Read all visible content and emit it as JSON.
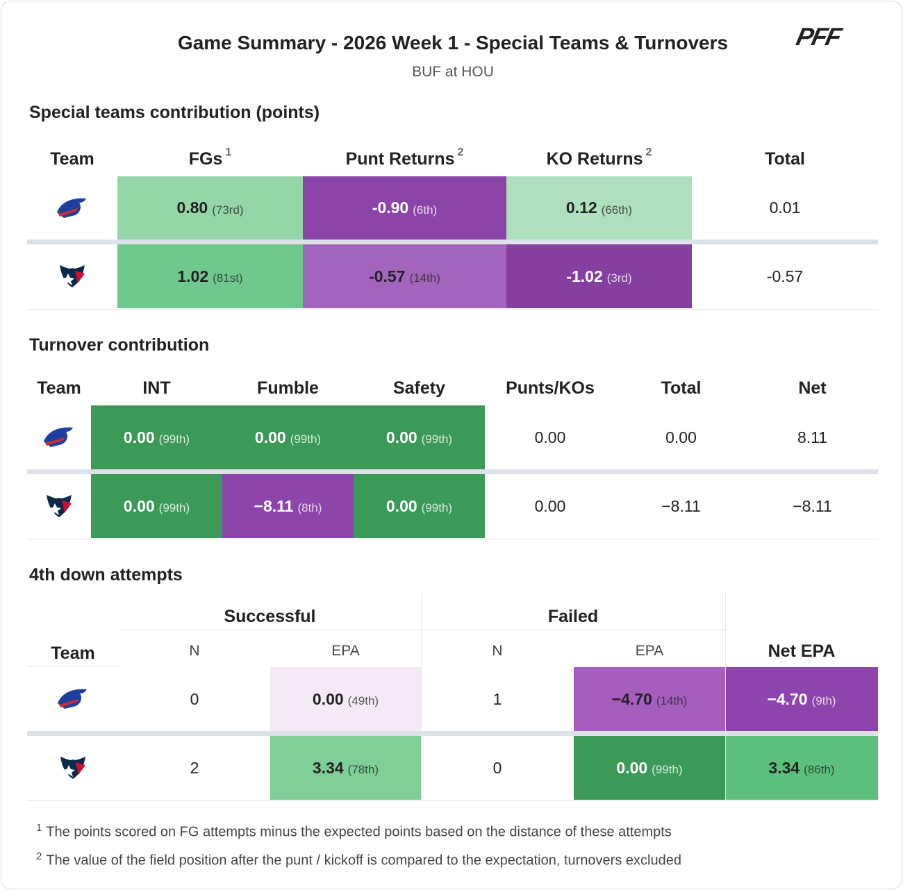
{
  "header": {
    "title": "Game Summary - 2026 Week 1 - Special Teams & Turnovers",
    "subtitle": "BUF at HOU",
    "logo": "PFF"
  },
  "special_teams": {
    "title": "Special teams contribution (points)",
    "columns": [
      {
        "label": "Team"
      },
      {
        "label": "FGs",
        "note": "1"
      },
      {
        "label": "Punt Returns",
        "note": "2"
      },
      {
        "label": "KO Returns",
        "note": "2"
      },
      {
        "label": "Total"
      }
    ],
    "rows": [
      [
        {
          "value": "0.80",
          "rank": "(73rd)",
          "color": "#95d6a9"
        },
        {
          "value": "-0.90",
          "rank": "(6th)",
          "color": "#8b45a9",
          "text_color": "#ffffff"
        },
        {
          "value": "0.12",
          "rank": "(66th)",
          "color": "#aee0bd"
        },
        "0.01"
      ],
      [
        {
          "value": "1.02",
          "rank": "(81st)",
          "color": "#6fc98e"
        },
        {
          "value": "-0.57",
          "rank": "(14th)",
          "color": "#a364bd"
        },
        {
          "value": "-1.02",
          "rank": "(3rd)",
          "color": "#843f9f",
          "text_color": "#ffffff"
        },
        "-0.57"
      ]
    ]
  },
  "turnovers": {
    "title": "Turnover contribution",
    "columns": [
      {
        "label": "Team"
      },
      {
        "label": "INT"
      },
      {
        "label": "Fumble"
      },
      {
        "label": "Safety"
      },
      {
        "label": "Punts/KOs"
      },
      {
        "label": "Total"
      },
      {
        "label": "Net"
      }
    ],
    "rows": [
      [
        {
          "value": "0.00",
          "rank": "(99th)",
          "color": "#3b9a58",
          "text_color": "#ffffff"
        },
        {
          "value": "0.00",
          "rank": "(99th)",
          "color": "#3b9a58",
          "text_color": "#ffffff"
        },
        {
          "value": "0.00",
          "rank": "(99th)",
          "color": "#3b9a58",
          "text_color": "#ffffff"
        },
        "0.00",
        "0.00",
        "8.11"
      ],
      [
        {
          "value": "0.00",
          "rank": "(99th)",
          "color": "#3b9a58",
          "text_color": "#ffffff"
        },
        {
          "value": "−8.11",
          "rank": "(8th)",
          "color": "#8e45ab",
          "text_color": "#ffffff"
        },
        {
          "value": "0.00",
          "rank": "(99th)",
          "color": "#3b9a58",
          "text_color": "#ffffff"
        },
        "0.00",
        "−8.11",
        "−8.11"
      ]
    ]
  },
  "fourth_down": {
    "title": "4th down attempts",
    "groups": [
      {
        "label": "Successful"
      },
      {
        "label": "Failed"
      }
    ],
    "columns": [
      {
        "label": "Team"
      },
      {
        "label": "N"
      },
      {
        "label": "EPA"
      },
      {
        "label": "N"
      },
      {
        "label": "EPA"
      },
      {
        "label": "Net EPA"
      }
    ],
    "rows": [
      [
        "0",
        {
          "value": "0.00",
          "rank": "(49th)",
          "color": "#f3eaf6"
        },
        "1",
        {
          "value": "−4.70",
          "rank": "(14th)",
          "color": "#a45ebe"
        },
        {
          "value": "−4.70",
          "rank": "(9th)",
          "color": "#8e44ad",
          "text_color": "#ffffff"
        }
      ],
      [
        "2",
        {
          "value": "3.34",
          "rank": "(78th)",
          "color": "#80cf99"
        },
        "0",
        {
          "value": "0.00",
          "rank": "(99th)",
          "color": "#3b9a58",
          "text_color": "#ffffff"
        },
        {
          "value": "3.34",
          "rank": "(86th)",
          "color": "#5cc07c"
        }
      ]
    ]
  },
  "footnotes": [
    {
      "marker": "1",
      "text": "The points scored on FG attempts minus the expected points based on the distance of these attempts"
    },
    {
      "marker": "2",
      "text": "The value of the field position after the punt / kickoff is compared to the expectation, turnovers excluded"
    }
  ]
}
